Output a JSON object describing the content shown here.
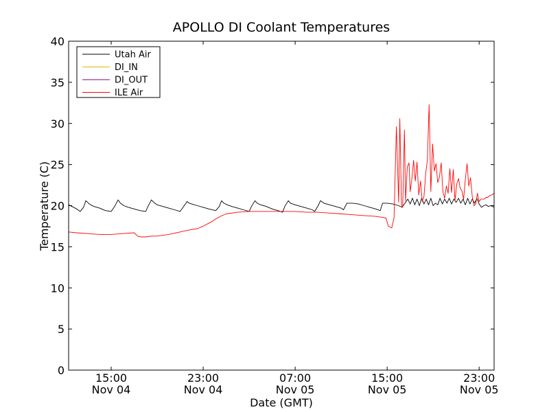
{
  "chart_data": {
    "type": "line",
    "title": "APOLLO DI Coolant Temperatures",
    "xlabel": "Date (GMT)",
    "ylabel": "Temperature (C)",
    "xlim_hours": [
      11.3,
      48.3
    ],
    "ylim": [
      0,
      40
    ],
    "yticks": [
      0,
      5,
      10,
      15,
      20,
      25,
      30,
      35,
      40
    ],
    "xticks": [
      {
        "hour": 15,
        "time": "15:00",
        "date": "Nov 04"
      },
      {
        "hour": 23,
        "time": "23:00",
        "date": "Nov 04"
      },
      {
        "hour": 31,
        "time": "07:00",
        "date": "Nov 05"
      },
      {
        "hour": 39,
        "time": "15:00",
        "date": "Nov 05"
      },
      {
        "hour": 47,
        "time": "23:00",
        "date": "Nov 05"
      }
    ],
    "legend_position": "top-left",
    "series": [
      {
        "name": "Utah Air",
        "color": "#000000",
        "x": [
          11.3,
          11.6,
          12.0,
          12.3,
          12.6,
          12.8,
          13.1,
          13.5,
          14.0,
          14.5,
          15.0,
          15.3,
          15.6,
          15.8,
          16.1,
          16.5,
          17.0,
          17.5,
          18.0,
          18.2,
          18.5,
          18.7,
          19.0,
          19.5,
          20.0,
          20.5,
          21.0,
          21.3,
          21.6,
          21.8,
          22.0,
          22.5,
          23.0,
          23.5,
          24.1,
          24.4,
          24.6,
          24.8,
          25.1,
          25.5,
          26.0,
          26.5,
          27.0,
          27.2,
          27.5,
          27.7,
          28.0,
          28.5,
          29.0,
          29.5,
          29.9,
          30.1,
          30.4,
          30.6,
          31.0,
          31.5,
          32.0,
          32.5,
          32.7,
          33.0,
          33.2,
          33.5,
          34.0,
          34.5,
          35.0,
          35.2,
          35.5,
          36.0,
          36.5,
          37.0,
          37.5,
          38.0,
          38.4,
          38.6,
          39.0,
          39.5,
          40.0,
          40.3,
          40.6,
          40.8,
          41.0,
          41.2,
          41.4,
          41.6,
          41.8,
          42.0,
          42.2,
          42.4,
          42.6,
          42.8,
          43.0,
          43.2,
          43.4,
          43.6,
          43.8,
          44.0,
          44.2,
          44.4,
          44.6,
          44.8,
          45.0,
          45.2,
          45.4,
          45.6,
          45.8,
          46.0,
          46.2,
          46.4,
          46.6,
          46.8,
          47.0,
          47.2,
          47.4,
          47.6,
          47.8,
          48.0,
          48.3
        ],
        "values": [
          20.1,
          19.9,
          19.6,
          19.3,
          19.8,
          20.6,
          20.2,
          19.9,
          19.7,
          19.4,
          19.3,
          19.9,
          20.7,
          20.3,
          20.0,
          19.8,
          19.6,
          19.4,
          19.3,
          19.9,
          20.7,
          20.4,
          20.1,
          19.9,
          19.7,
          19.5,
          19.3,
          19.9,
          20.5,
          20.3,
          20.2,
          20.0,
          19.8,
          19.6,
          19.4,
          19.9,
          20.6,
          20.3,
          20.1,
          19.9,
          19.7,
          19.5,
          19.3,
          19.9,
          20.6,
          20.3,
          20.1,
          19.9,
          19.6,
          19.4,
          19.2,
          19.9,
          20.6,
          20.3,
          20.1,
          19.9,
          19.7,
          19.5,
          19.3,
          20.0,
          20.6,
          20.3,
          20.1,
          19.9,
          19.7,
          19.5,
          20.3,
          20.3,
          20.2,
          20.0,
          19.8,
          19.6,
          19.4,
          20.3,
          20.3,
          20.2,
          20.0,
          19.8,
          20.4,
          20.8,
          20.2,
          20.9,
          20.1,
          20.8,
          20.0,
          20.9,
          20.2,
          20.8,
          20.1,
          20.9,
          20.0,
          20.3,
          20.1,
          20.9,
          20.2,
          20.8,
          20.3,
          20.9,
          20.2,
          20.8,
          20.4,
          20.9,
          20.3,
          20.8,
          20.1,
          20.9,
          20.2,
          20.8,
          20.3,
          20.9,
          20.2,
          19.8,
          20.0,
          20.1,
          19.9,
          20.0,
          19.8
        ]
      },
      {
        "name": "DI_IN",
        "color": "#e8b400",
        "x": [],
        "values": []
      },
      {
        "name": "DI_OUT",
        "color": "#800080",
        "x": [],
        "values": []
      },
      {
        "name": "ILE Air",
        "color": "#ff0000",
        "x": [
          11.3,
          12.0,
          13.0,
          14.0,
          15.0,
          16.0,
          17.0,
          17.3,
          17.6,
          18.0,
          18.5,
          19.0,
          20.0,
          21.0,
          22.0,
          22.5,
          23.0,
          23.4,
          23.8,
          24.1,
          24.5,
          25.0,
          26.0,
          27.0,
          28.0,
          29.0,
          30.0,
          31.0,
          32.0,
          33.0,
          34.0,
          35.0,
          36.0,
          37.0,
          38.0,
          38.5,
          38.9,
          39.1,
          39.4,
          39.6,
          39.8,
          40.0,
          40.1,
          40.25,
          40.35,
          40.5,
          40.6,
          40.75,
          40.9,
          41.0,
          41.15,
          41.3,
          41.45,
          41.6,
          41.75,
          41.9,
          42.05,
          42.2,
          42.35,
          42.5,
          42.65,
          42.8,
          42.95,
          43.1,
          43.25,
          43.4,
          43.55,
          43.7,
          43.85,
          44.0,
          44.15,
          44.3,
          44.45,
          44.6,
          44.75,
          44.9,
          45.05,
          45.2,
          45.35,
          45.5,
          45.65,
          45.8,
          45.95,
          46.1,
          46.25,
          46.4,
          46.55,
          46.7,
          46.85,
          47.0,
          47.15,
          47.3,
          47.45,
          47.6,
          47.75,
          47.9,
          48.1,
          48.3
        ],
        "values": [
          16.8,
          16.7,
          16.6,
          16.5,
          16.5,
          16.6,
          16.7,
          16.3,
          16.2,
          16.2,
          16.3,
          16.3,
          16.5,
          16.8,
          17.1,
          17.2,
          17.5,
          17.8,
          18.1,
          18.4,
          18.7,
          19.0,
          19.2,
          19.3,
          19.3,
          19.3,
          19.3,
          19.3,
          19.2,
          19.2,
          19.1,
          19.0,
          18.9,
          18.8,
          18.7,
          18.6,
          18.5,
          17.5,
          17.3,
          18.5,
          29.6,
          20.4,
          30.6,
          20.0,
          19.8,
          29.2,
          20.6,
          24.7,
          25.2,
          21.7,
          23.3,
          25.5,
          23.0,
          25.3,
          21.3,
          23.0,
          20.5,
          21.1,
          23.9,
          25.6,
          32.3,
          21.7,
          27.5,
          24.2,
          25.1,
          22.8,
          23.5,
          25.2,
          21.7,
          20.9,
          22.4,
          21.5,
          24.5,
          21.6,
          24.4,
          20.6,
          22.6,
          23.3,
          22.1,
          21.8,
          20.8,
          23.2,
          25.1,
          22.4,
          23.4,
          21.1,
          20.0,
          20.2,
          21.5,
          20.5,
          20.8,
          20.8,
          20.8,
          21.0,
          21.0,
          21.2,
          21.3,
          21.5
        ]
      }
    ]
  }
}
